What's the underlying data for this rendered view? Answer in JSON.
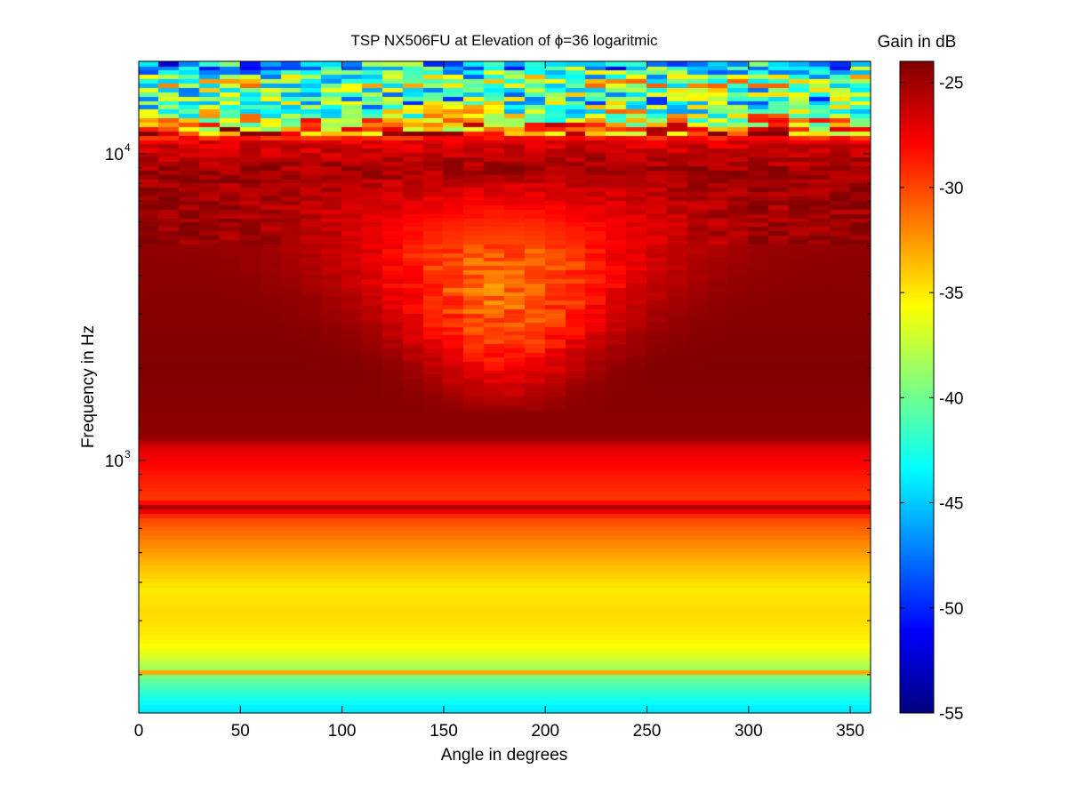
{
  "chart_data": {
    "type": "heatmap",
    "title": "TSP NX506FU at Elevation of ϕ=36 logaritmic",
    "xlabel": "Angle in degrees",
    "ylabel": "Frequency in Hz",
    "colorbar_label": "Gain in dB",
    "colormap": "jet",
    "xlim": [
      0,
      360
    ],
    "ylim": [
      150,
      20000
    ],
    "yscale": "log",
    "clim": [
      -55,
      -24
    ],
    "x_ticks": [
      0,
      50,
      100,
      150,
      200,
      250,
      300,
      350
    ],
    "x_tick_labels": [
      "0",
      "50",
      "100",
      "150",
      "200",
      "250",
      "300",
      "350"
    ],
    "y_ticks": [
      1000,
      10000
    ],
    "y_tick_labels": [
      {
        "base": "10",
        "exp": "3"
      },
      {
        "base": "10",
        "exp": "4"
      }
    ],
    "colorbar_ticks": [
      -25,
      -30,
      -35,
      -40,
      -45,
      -50,
      -55
    ],
    "colorbar_tick_labels": [
      "-25",
      "-30",
      "-35",
      "-40",
      "-45",
      "-50",
      "-55"
    ],
    "angle_step_deg": 10,
    "gain_profile_db": [
      {
        "freq_hz": 155,
        "gain_db": -44
      },
      {
        "freq_hz": 175,
        "gain_db": -42
      },
      {
        "freq_hz": 195,
        "gain_db": -40
      },
      {
        "freq_hz": 215,
        "gain_db": -38
      },
      {
        "freq_hz": 240,
        "gain_db": -36
      },
      {
        "freq_hz": 270,
        "gain_db": -35
      },
      {
        "freq_hz": 320,
        "gain_db": -34.5
      },
      {
        "freq_hz": 380,
        "gain_db": -35
      },
      {
        "freq_hz": 460,
        "gain_db": -33.5
      },
      {
        "freq_hz": 560,
        "gain_db": -31.5
      },
      {
        "freq_hz": 650,
        "gain_db": -30
      },
      {
        "freq_hz": 700,
        "gain_db": -26
      },
      {
        "freq_hz": 750,
        "gain_db": -29.5
      },
      {
        "freq_hz": 900,
        "gain_db": -28.5
      },
      {
        "freq_hz": 1100,
        "gain_db": -27
      },
      {
        "freq_hz": 1200,
        "gain_db": -24.5
      },
      {
        "freq_hz": 2000,
        "gain_db": -24
      },
      {
        "freq_hz": 5000,
        "gain_db": -24.5
      },
      {
        "freq_hz": 9000,
        "gain_db": -25
      },
      {
        "freq_hz": 11000,
        "gain_db": -27
      },
      {
        "freq_hz": 13000,
        "gain_db": -36
      },
      {
        "freq_hz": 15000,
        "gain_db": -43
      },
      {
        "freq_hz": 17000,
        "gain_db": -38
      },
      {
        "freq_hz": 20000,
        "gain_db": -46
      }
    ],
    "front_dip_region": {
      "center_angle_deg": 180,
      "freq_range_hz": [
        1400,
        12000
      ],
      "peak_gain_db": -33.5
    },
    "notable_lines": [
      {
        "freq_hz": 700,
        "gain_db": -25.5
      },
      {
        "freq_hz": 205,
        "gain_db": -33
      }
    ]
  }
}
